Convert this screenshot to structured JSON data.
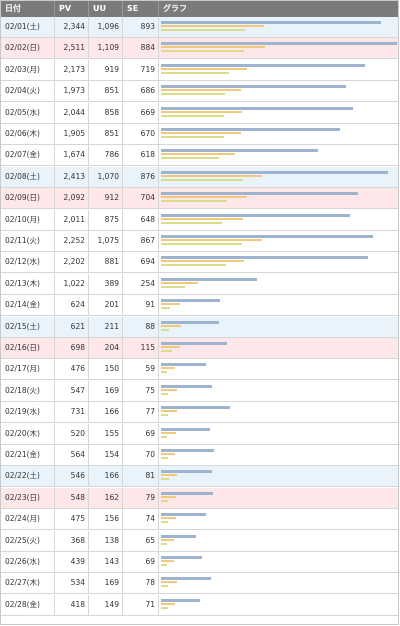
{
  "headers": {
    "date": "日付",
    "pv": "PV",
    "uu": "UU",
    "se": "SE",
    "graph": "グラフ"
  },
  "colors": {
    "pv": "#9db3cf",
    "uu": "#f2c97a",
    "se": "#d9dc88",
    "saturday_bg": "#e8f3fb",
    "sunday_bg": "#fde7e9",
    "header_bg": "#7b7b7b"
  },
  "chart_data": {
    "type": "bar",
    "series_keys": [
      "pv",
      "uu",
      "se"
    ],
    "rows": [
      {
        "date": "02/01(土)",
        "pv": "2,344",
        "uu": "1,096",
        "se": "893",
        "day": "sat"
      },
      {
        "date": "02/02(日)",
        "pv": "2,511",
        "uu": "1,109",
        "se": "884",
        "day": "sun"
      },
      {
        "date": "02/03(月)",
        "pv": "2,173",
        "uu": "919",
        "se": "719",
        "day": ""
      },
      {
        "date": "02/04(火)",
        "pv": "1,973",
        "uu": "851",
        "se": "686",
        "day": ""
      },
      {
        "date": "02/05(水)",
        "pv": "2,044",
        "uu": "858",
        "se": "669",
        "day": ""
      },
      {
        "date": "02/06(木)",
        "pv": "1,905",
        "uu": "851",
        "se": "670",
        "day": ""
      },
      {
        "date": "02/07(金)",
        "pv": "1,674",
        "uu": "786",
        "se": "618",
        "day": ""
      },
      {
        "date": "02/08(土)",
        "pv": "2,413",
        "uu": "1,070",
        "se": "876",
        "day": "sat"
      },
      {
        "date": "02/09(日)",
        "pv": "2,092",
        "uu": "912",
        "se": "704",
        "day": "sun"
      },
      {
        "date": "02/10(月)",
        "pv": "2,011",
        "uu": "875",
        "se": "648",
        "day": ""
      },
      {
        "date": "02/11(火)",
        "pv": "2,252",
        "uu": "1,075",
        "se": "867",
        "day": ""
      },
      {
        "date": "02/12(水)",
        "pv": "2,202",
        "uu": "881",
        "se": "694",
        "day": ""
      },
      {
        "date": "02/13(木)",
        "pv": "1,022",
        "uu": "389",
        "se": "254",
        "day": ""
      },
      {
        "date": "02/14(金)",
        "pv": "624",
        "uu": "201",
        "se": "91",
        "day": ""
      },
      {
        "date": "02/15(土)",
        "pv": "621",
        "uu": "211",
        "se": "88",
        "day": "sat"
      },
      {
        "date": "02/16(日)",
        "pv": "698",
        "uu": "204",
        "se": "115",
        "day": "sun"
      },
      {
        "date": "02/17(月)",
        "pv": "476",
        "uu": "150",
        "se": "59",
        "day": ""
      },
      {
        "date": "02/18(火)",
        "pv": "547",
        "uu": "169",
        "se": "75",
        "day": ""
      },
      {
        "date": "02/19(水)",
        "pv": "731",
        "uu": "166",
        "se": "77",
        "day": ""
      },
      {
        "date": "02/20(木)",
        "pv": "520",
        "uu": "155",
        "se": "69",
        "day": ""
      },
      {
        "date": "02/21(金)",
        "pv": "564",
        "uu": "154",
        "se": "70",
        "day": ""
      },
      {
        "date": "02/22(土)",
        "pv": "546",
        "uu": "166",
        "se": "81",
        "day": "sat"
      },
      {
        "date": "02/23(日)",
        "pv": "548",
        "uu": "162",
        "se": "79",
        "day": "sun"
      },
      {
        "date": "02/24(月)",
        "pv": "475",
        "uu": "156",
        "se": "74",
        "day": ""
      },
      {
        "date": "02/25(火)",
        "pv": "368",
        "uu": "138",
        "se": "65",
        "day": ""
      },
      {
        "date": "02/26(水)",
        "pv": "439",
        "uu": "143",
        "se": "69",
        "day": ""
      },
      {
        "date": "02/27(木)",
        "pv": "534",
        "uu": "169",
        "se": "78",
        "day": ""
      },
      {
        "date": "02/28(金)",
        "pv": "418",
        "uu": "149",
        "se": "71",
        "day": ""
      }
    ]
  }
}
